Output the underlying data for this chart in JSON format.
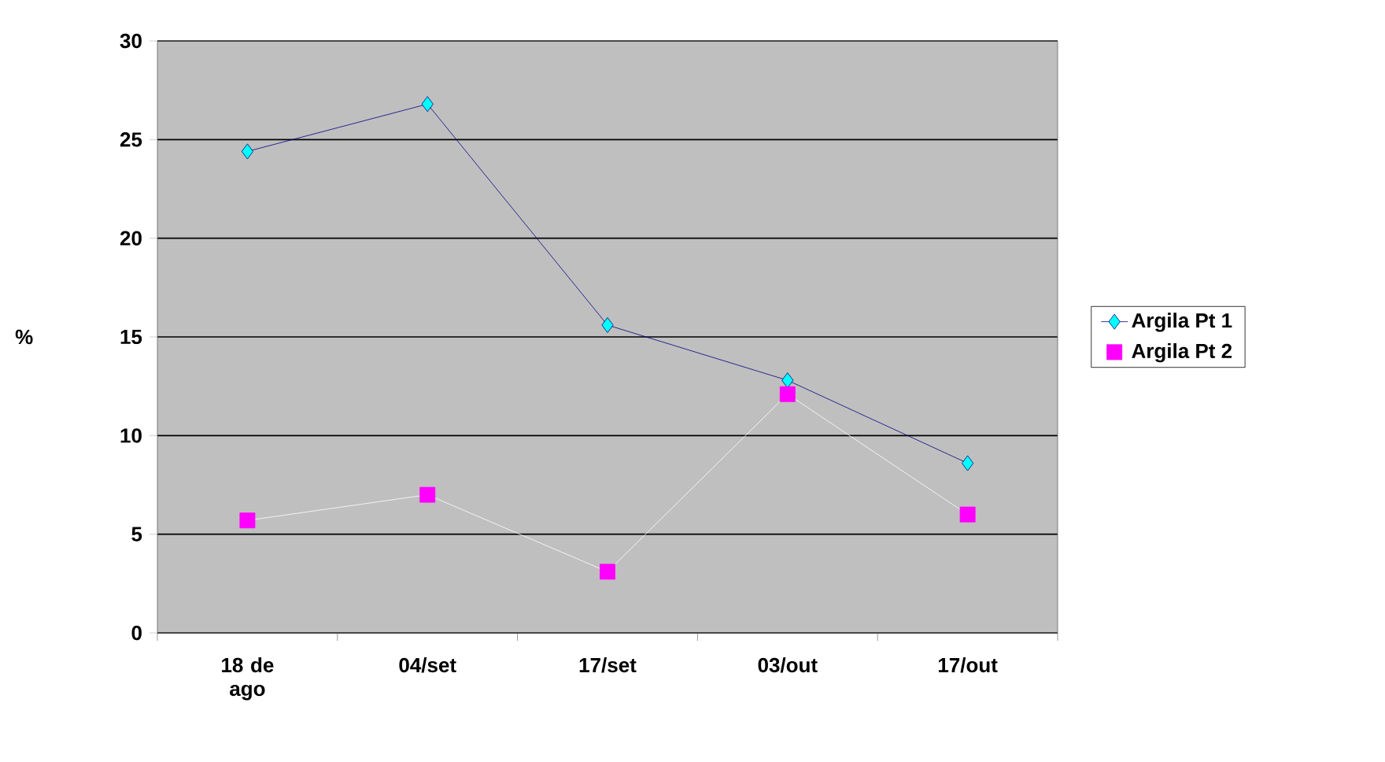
{
  "chart_data": {
    "type": "line",
    "ylabel": "%",
    "categories": [
      "18 de ago",
      "04/set",
      "17/set",
      "03/out",
      "17/out"
    ],
    "series": [
      {
        "name": "Argila Pt 1",
        "color": "#00ffff",
        "marker": "diamond",
        "values": [
          24.4,
          26.8,
          15.6,
          12.8,
          8.6
        ]
      },
      {
        "name": "Argila Pt 2",
        "color": "#ff00ff",
        "marker": "square",
        "values": [
          5.7,
          7.0,
          3.1,
          12.1,
          6.0
        ]
      }
    ],
    "ylim": [
      0,
      30
    ],
    "yticks": [
      0,
      5,
      10,
      15,
      20,
      25,
      30
    ],
    "grid": "y",
    "legend": "right"
  }
}
